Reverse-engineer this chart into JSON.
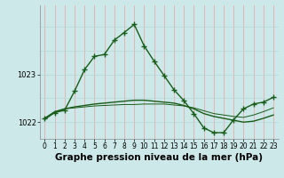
{
  "bg_color": "#cce8e8",
  "grid_color_v": "#e8a0a0",
  "grid_color_h": "#b8d8d8",
  "line_color": "#1a5c1a",
  "title": "Graphe pression niveau de la mer (hPa)",
  "x_hours": [
    0,
    1,
    2,
    3,
    4,
    5,
    6,
    7,
    8,
    9,
    10,
    11,
    12,
    13,
    14,
    15,
    16,
    17,
    18,
    19,
    20,
    21,
    22,
    23
  ],
  "line1": [
    1022.08,
    1022.2,
    1022.25,
    1022.65,
    1023.1,
    1023.38,
    1023.42,
    1023.72,
    1023.88,
    1024.05,
    1023.6,
    1023.28,
    1022.98,
    1022.68,
    1022.45,
    1022.18,
    1021.88,
    1021.78,
    1021.78,
    1022.05,
    1022.28,
    1022.38,
    1022.42,
    1022.52
  ],
  "line2": [
    1022.08,
    1022.22,
    1022.28,
    1022.32,
    1022.35,
    1022.38,
    1022.4,
    1022.42,
    1022.44,
    1022.46,
    1022.46,
    1022.44,
    1022.42,
    1022.4,
    1022.35,
    1022.28,
    1022.18,
    1022.12,
    1022.08,
    1022.04,
    1022.0,
    1022.02,
    1022.08,
    1022.15
  ],
  "line3": [
    1022.05,
    1022.2,
    1022.28,
    1022.3,
    1022.32,
    1022.34,
    1022.35,
    1022.36,
    1022.37,
    1022.37,
    1022.38,
    1022.38,
    1022.38,
    1022.36,
    1022.34,
    1022.3,
    1022.24,
    1022.18,
    1022.15,
    1022.12,
    1022.1,
    1022.15,
    1022.22,
    1022.3
  ],
  "ylim": [
    1021.65,
    1024.45
  ],
  "yticks": [
    1022,
    1023
  ],
  "title_fontsize": 7.5,
  "tick_fontsize": 6.0
}
